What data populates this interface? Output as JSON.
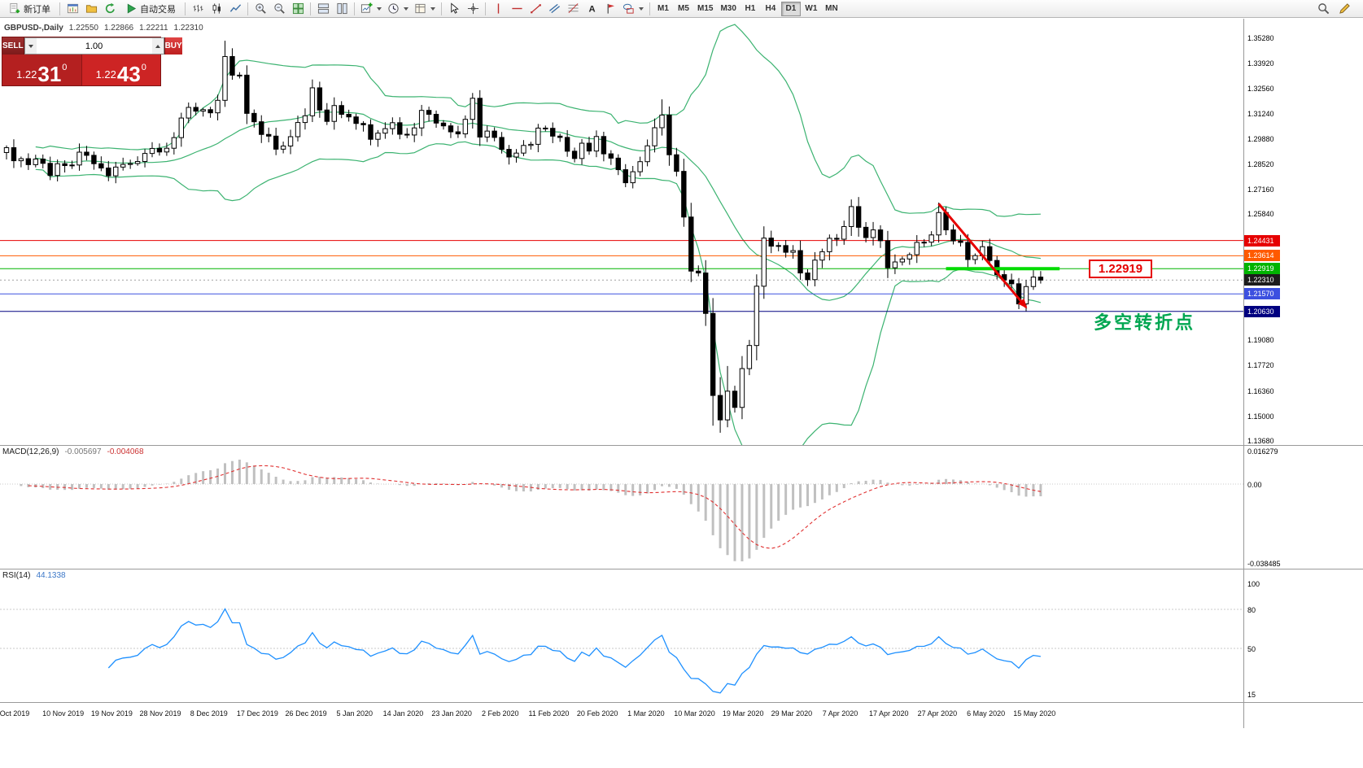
{
  "toolbar": {
    "groups": [
      {
        "items": [
          {
            "id": "new-order",
            "icon": "new-order",
            "label": "新订单"
          }
        ]
      },
      {
        "items": [
          {
            "id": "chart-window",
            "icon": "chart-window"
          },
          {
            "id": "profiles",
            "icon": "profiles"
          },
          {
            "id": "refresh",
            "icon": "refresh"
          },
          {
            "id": "autotrade",
            "icon": "play",
            "label": "自动交易"
          }
        ]
      },
      {
        "items": [
          {
            "id": "bar-chart",
            "icon": "bars"
          },
          {
            "id": "candle-chart",
            "icon": "candles"
          },
          {
            "id": "line-chart",
            "icon": "line"
          }
        ]
      },
      {
        "items": [
          {
            "id": "zoom-in",
            "icon": "zoom-in"
          },
          {
            "id": "zoom-out",
            "icon": "zoom-out"
          },
          {
            "id": "tile-windows",
            "icon": "tile"
          }
        ]
      },
      {
        "items": [
          {
            "id": "arrange-horizontal",
            "icon": "win-h"
          },
          {
            "id": "arrange-vertical",
            "icon": "win-v"
          }
        ]
      },
      {
        "items": [
          {
            "id": "new-chart",
            "icon": "chart-plus",
            "caret": true
          },
          {
            "id": "periods",
            "icon": "clock",
            "caret": true
          },
          {
            "id": "templates",
            "icon": "template",
            "caret": true
          }
        ]
      },
      {
        "items": [
          {
            "id": "cursor",
            "icon": "cursor"
          },
          {
            "id": "crosshair",
            "icon": "crosshair"
          }
        ]
      },
      {
        "items": [
          {
            "id": "vertical-line",
            "icon": "vline"
          },
          {
            "id": "horizontal-line",
            "icon": "hline"
          },
          {
            "id": "trendline",
            "icon": "trend"
          },
          {
            "id": "equidistant-channel",
            "icon": "channel"
          },
          {
            "id": "fibonacci-retracement",
            "icon": "fibo"
          },
          {
            "id": "text",
            "icon": "text"
          },
          {
            "id": "arrow-label",
            "icon": "flag"
          },
          {
            "id": "shapes",
            "icon": "shapes",
            "caret": true
          }
        ]
      }
    ],
    "timeframes": [
      "M1",
      "M5",
      "M15",
      "M30",
      "H1",
      "H4",
      "D1",
      "W1",
      "MN"
    ],
    "active_timeframe": "D1",
    "right_items": [
      {
        "id": "search",
        "icon": "search"
      },
      {
        "id": "edit",
        "icon": "pencil"
      }
    ]
  },
  "chart": {
    "title": "GBPUSD-,Daily",
    "ohlc": {
      "open": "1.22550",
      "high": "1.22866",
      "low": "1.22211",
      "close": "1.22310"
    }
  },
  "trade_panel": {
    "sell_label": "SELL",
    "buy_label": "BUY",
    "volume": "1.00",
    "sell_price": {
      "big": "1.22",
      "pips": "31",
      "point": "0"
    },
    "buy_price": {
      "big": "1.22",
      "pips": "43",
      "point": "0"
    }
  },
  "annotations": {
    "price_label": "1.22919",
    "price_label_color": "#e60000",
    "turning_point_text": "多空转折点",
    "turning_point_color": "#00a651"
  },
  "indicators": {
    "macd": {
      "label": "MACD(12,26,9)",
      "value_main": "-0.005697",
      "value_signal": "-0.004068",
      "scale": {
        "max": "0.016279",
        "zero": "0.00",
        "min": "-0.038485"
      }
    },
    "rsi": {
      "label": "RSI(14)",
      "value": "44.1338",
      "scale": [
        "100",
        "80",
        "50",
        "15"
      ]
    }
  },
  "price_axis": {
    "ticks": [
      "1.35280",
      "1.33920",
      "1.32560",
      "1.31240",
      "1.29880",
      "1.28520",
      "1.27160",
      "1.25840",
      "1.19080",
      "1.17720",
      "1.16360",
      "1.15000",
      "1.13680"
    ],
    "badges": [
      {
        "text": "1.24431",
        "color": "#e60000"
      },
      {
        "text": "1.23614",
        "color": "#ff5a00"
      },
      {
        "text": "1.22919",
        "color": "#00b400"
      },
      {
        "text": "1.22310",
        "color": "#1c1c1c"
      },
      {
        "text": "1.21570",
        "color": "#3c50e0"
      },
      {
        "text": "1.20630",
        "color": "#000080"
      }
    ]
  },
  "time_axis": [
    "Oct 2019",
    "10 Nov 2019",
    "19 Nov 2019",
    "28 Nov 2019",
    "8 Dec 2019",
    "17 Dec 2019",
    "26 Dec 2019",
    "5 Jan 2020",
    "14 Jan 2020",
    "23 Jan 2020",
    "2 Feb 2020",
    "11 Feb 2020",
    "20 Feb 2020",
    "1 Mar 2020",
    "10 Mar 2020",
    "19 Mar 2020",
    "29 Mar 2020",
    "7 Apr 2020",
    "17 Apr 2020",
    "27 Apr 2020",
    "6 May 2020",
    "15 May 2020"
  ],
  "chart_data": {
    "type": "candlestick",
    "symbol": "GBPUSD",
    "period": "Daily",
    "price_range": [
      1.1368,
      1.3528
    ],
    "first_open": 1.2915,
    "closes": [
      1.2941,
      1.2871,
      1.2882,
      1.285,
      1.288,
      1.2857,
      1.2792,
      1.2855,
      1.2845,
      1.2848,
      1.2917,
      1.29,
      1.2855,
      1.2832,
      1.279,
      1.2837,
      1.2851,
      1.2856,
      1.2867,
      1.291,
      1.2937,
      1.2918,
      1.2938,
      1.2995,
      1.31,
      1.3157,
      1.3137,
      1.3145,
      1.3128,
      1.3195,
      1.343,
      1.333,
      1.333,
      1.3125,
      1.308,
      1.3012,
      1.3003,
      1.2933,
      1.295,
      1.3,
      1.3076,
      1.3112,
      1.3262,
      1.3143,
      1.3082,
      1.3167,
      1.312,
      1.3106,
      1.3071,
      1.3064,
      1.2986,
      1.3019,
      1.3043,
      1.3075,
      1.3013,
      1.3009,
      1.3047,
      1.3141,
      1.312,
      1.3073,
      1.3058,
      1.3026,
      1.3015,
      1.3093,
      1.3206,
      1.2998,
      1.303,
      1.2996,
      1.2932,
      1.2891,
      1.2912,
      1.2953,
      1.2959,
      1.3046,
      1.3045,
      1.3003,
      1.2996,
      1.2922,
      1.2883,
      1.2965,
      1.2923,
      1.3001,
      1.2908,
      1.2885,
      1.2823,
      1.2753,
      1.2812,
      1.2866,
      1.2951,
      1.3048,
      1.3116,
      1.2903,
      1.2814,
      1.2569,
      1.2279,
      1.2269,
      1.2052,
      1.1612,
      1.1481,
      1.1635,
      1.1548,
      1.1756,
      1.188,
      1.2198,
      1.2456,
      1.2413,
      1.2416,
      1.238,
      1.2389,
      1.2269,
      1.2233,
      1.2338,
      1.2383,
      1.2455,
      1.245,
      1.2518,
      1.2625,
      1.2514,
      1.2459,
      1.25,
      1.2442,
      1.2297,
      1.2328,
      1.2344,
      1.2367,
      1.2433,
      1.2434,
      1.2473,
      1.2593,
      1.25,
      1.2441,
      1.2433,
      1.2341,
      1.2362,
      1.241,
      1.2336,
      1.226,
      1.2231,
      1.2211,
      1.2103,
      1.2196,
      1.2247,
      1.2231
    ],
    "wick_overrides": {
      "30": {
        "h": 1.3515,
        "l": 1.316
      },
      "90": {
        "h": 1.32
      },
      "97": {
        "l": 1.145
      },
      "98": {
        "h": 1.171,
        "l": 1.1412
      },
      "99": {
        "h": 1.177
      },
      "139": {
        "l": 1.2075
      },
      "140": {
        "l": 1.2063
      }
    },
    "bollinger": {
      "period": 20,
      "deviation": 2,
      "color": "#3cb371"
    },
    "macd_params": {
      "fast": 12,
      "slow": 26,
      "signal": 9
    },
    "rsi_period": 14,
    "hlines": [
      {
        "price": 1.24431,
        "color": "#e60000",
        "width": 1
      },
      {
        "price": 1.23614,
        "color": "#ff5a00",
        "width": 1
      },
      {
        "price": 1.22919,
        "color": "#00b400",
        "width": 1
      },
      {
        "price": 1.2157,
        "color": "#3c50e0",
        "width": 1
      },
      {
        "price": 1.2063,
        "color": "#000080",
        "width": 1
      }
    ],
    "bid_line": {
      "price": 1.2231,
      "color": "#a0a0a0"
    },
    "support_segment": {
      "price": 1.22919,
      "from_index": 129,
      "to_index": 144.6,
      "color": "#00dc00",
      "width": 4
    },
    "trend_arrow": {
      "from": {
        "index": 128,
        "price": 1.264
      },
      "to": {
        "index": 140,
        "price": 1.2085
      },
      "color": "#e60000",
      "width": 3
    }
  }
}
